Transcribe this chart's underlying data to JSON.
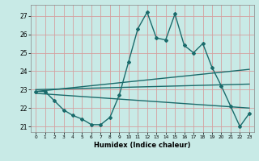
{
  "xlabel": "Humidex (Indice chaleur)",
  "xlim": [
    -0.5,
    23.5
  ],
  "ylim": [
    20.7,
    27.6
  ],
  "yticks": [
    21,
    22,
    23,
    24,
    25,
    26,
    27
  ],
  "xticks": [
    0,
    1,
    2,
    3,
    4,
    5,
    6,
    7,
    8,
    9,
    10,
    11,
    12,
    13,
    14,
    15,
    16,
    17,
    18,
    19,
    20,
    21,
    22,
    23
  ],
  "bg_color": "#c8eae6",
  "grid_color": "#d4a0a0",
  "line_color": "#1a6b6b",
  "line_width": 1.0,
  "marker": "D",
  "markersize": 2.0,
  "series": [
    {
      "x": [
        0,
        1,
        2,
        3,
        4,
        5,
        6,
        7,
        8,
        9,
        10,
        11,
        12,
        13,
        14,
        15,
        16,
        17,
        18,
        19,
        20,
        21,
        22,
        23
      ],
      "y": [
        22.9,
        22.9,
        22.4,
        21.9,
        21.6,
        21.4,
        21.1,
        21.1,
        21.5,
        22.7,
        24.5,
        26.3,
        27.2,
        25.8,
        25.7,
        27.1,
        25.4,
        25.0,
        25.5,
        24.2,
        23.2,
        22.1,
        21.0,
        21.7
      ],
      "has_markers": true
    },
    {
      "x": [
        0,
        23
      ],
      "y": [
        22.9,
        24.1
      ],
      "has_markers": false
    },
    {
      "x": [
        0,
        23
      ],
      "y": [
        23.0,
        23.3
      ],
      "has_markers": false
    },
    {
      "x": [
        0,
        23
      ],
      "y": [
        22.8,
        22.0
      ],
      "has_markers": false
    }
  ]
}
